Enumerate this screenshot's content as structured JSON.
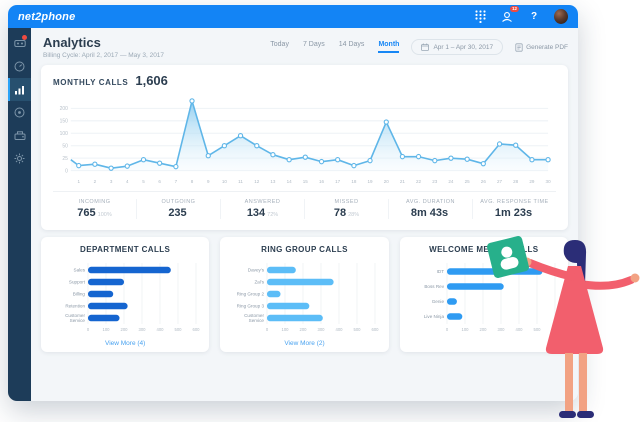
{
  "topbar": {
    "logo": "net2phone",
    "badge_count": "12",
    "help_label": "?"
  },
  "sidebar": {
    "items": [
      {
        "icon": "voicemail",
        "has_alert": true,
        "active": false
      },
      {
        "icon": "dashboard-clock",
        "has_alert": false,
        "active": false
      },
      {
        "icon": "analytics-bars",
        "has_alert": false,
        "active": true
      },
      {
        "icon": "recordings",
        "has_alert": false,
        "active": false
      },
      {
        "icon": "phone-system",
        "has_alert": false,
        "active": false
      },
      {
        "icon": "settings-gear",
        "has_alert": false,
        "active": false
      }
    ]
  },
  "header": {
    "title": "Analytics",
    "subtitle": "Billing Cycle: April 2, 2017 — May 3, 2017",
    "tabs": [
      {
        "label": "Today",
        "active": false
      },
      {
        "label": "7 Days",
        "active": false
      },
      {
        "label": "14 Days",
        "active": false
      },
      {
        "label": "Month",
        "active": true
      }
    ],
    "date_range": "Apr 1 – Apr 30, 2017",
    "generate_pdf": "Generate PDF"
  },
  "summary": {
    "title": "MONTHLY CALLS",
    "total": "1,606",
    "stats": [
      {
        "label": "INCOMING",
        "value": "765",
        "sub": "100%"
      },
      {
        "label": "OUTGOING",
        "value": "235",
        "sub": ""
      },
      {
        "label": "ANSWERED",
        "value": "134",
        "sub": "72%"
      },
      {
        "label": "MISSED",
        "value": "78",
        "sub": "28%"
      },
      {
        "label": "AVG. DURATION",
        "value": "8m 43s",
        "sub": ""
      },
      {
        "label": "AVG. RESPONSE TIME",
        "value": "1m 23s",
        "sub": ""
      }
    ]
  },
  "chart_data": [
    {
      "id": "monthly-calls",
      "type": "area",
      "title": "MONTHLY CALLS 1,606",
      "x": [
        1,
        2,
        3,
        4,
        5,
        6,
        7,
        8,
        9,
        10,
        11,
        12,
        13,
        14,
        15,
        16,
        17,
        18,
        19,
        20,
        21,
        22,
        23,
        24,
        25,
        26,
        27,
        28,
        29,
        30
      ],
      "values": [
        10,
        13,
        5,
        9,
        22,
        15,
        8,
        230,
        30,
        50,
        90,
        50,
        32,
        22,
        27,
        18,
        22,
        10,
        20,
        145,
        28,
        28,
        20,
        25,
        23,
        14,
        57,
        52,
        22,
        22
      ],
      "lead_in_value": 22,
      "yticks": [
        0,
        25,
        50,
        100,
        150,
        200
      ],
      "ylim": [
        0,
        230
      ],
      "grid": true,
      "legend": "none",
      "line_color": "#5fb6e8"
    },
    {
      "id": "department-calls",
      "type": "bar",
      "title": "DEPARTMENT CALLS",
      "categories": [
        "Sales",
        "Support",
        "Billing",
        "Retention",
        "Customer Service"
      ],
      "values": [
        460,
        200,
        140,
        220,
        175
      ],
      "xticks": [
        0,
        100,
        200,
        300,
        400,
        500,
        600
      ],
      "xlim": [
        0,
        600
      ],
      "grid": true,
      "bar_color": "#1565d0",
      "view_more": "View More (4)"
    },
    {
      "id": "ring-group-calls",
      "type": "bar",
      "title": "RING GROUP CALLS",
      "categories": [
        "Davey's",
        "Zal's",
        "Ring Group 2",
        "Ring Group 3",
        "Customer Service"
      ],
      "values": [
        160,
        370,
        75,
        235,
        310
      ],
      "xticks": [
        0,
        100,
        200,
        300,
        400,
        500,
        600
      ],
      "xlim": [
        0,
        600
      ],
      "grid": true,
      "bar_color": "#5cbdf7",
      "view_more": "View More (2)"
    },
    {
      "id": "welcome-menus-calls",
      "type": "bar",
      "title": "WELCOME MENUS CALLS",
      "categories": [
        "IDT",
        "Boss Rev",
        "Genie",
        "Live Ninja"
      ],
      "values": [
        530,
        315,
        55,
        85
      ],
      "xticks": [
        0,
        100,
        200,
        300,
        400,
        500,
        600
      ],
      "xlim": [
        0,
        600
      ],
      "grid": true,
      "bar_color": "#2f9bf2",
      "view_more": ""
    }
  ]
}
